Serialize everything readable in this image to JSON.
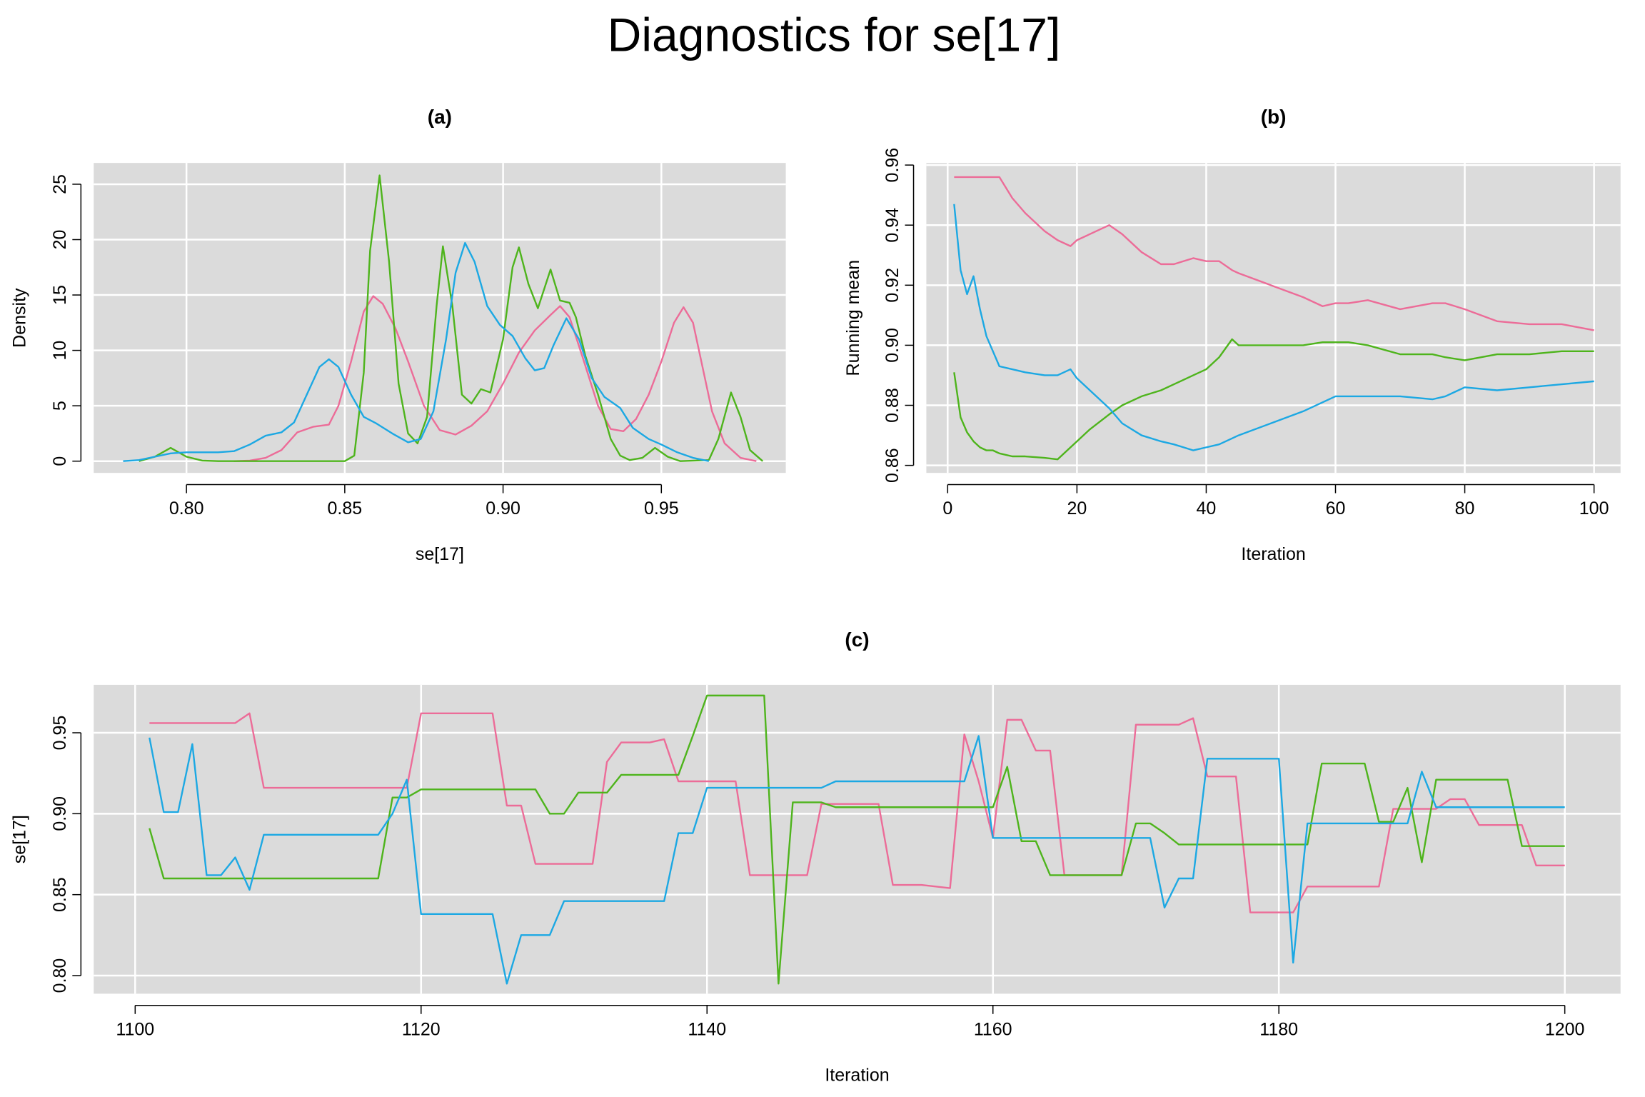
{
  "title": "Diagnostics for se[17]",
  "chart_data": [
    {
      "type": "line",
      "title": "(a)",
      "xlabel": "se[17]",
      "ylabel": "Density",
      "xlim": [
        0.7707,
        0.9893
      ],
      "ylim": [
        -1.06,
        26.92
      ],
      "xticks": [
        {
          "value": 0.8,
          "label": "0.80"
        },
        0.85,
        {
          "value": 0.9,
          "label": "0.90"
        },
        0.95
      ],
      "yticks": [
        0,
        5,
        10,
        15,
        20,
        25
      ],
      "grid": true,
      "series": [
        {
          "color": "#EC6C98",
          "x": [
            0.815,
            0.82,
            0.825,
            0.83,
            0.835,
            0.84,
            0.845,
            0.848,
            0.852,
            0.856,
            0.859,
            0.862,
            0.866,
            0.87,
            0.875,
            0.88,
            0.885,
            0.89,
            0.895,
            0.9,
            0.905,
            0.91,
            0.915,
            0.918,
            0.921,
            0.925,
            0.93,
            0.934,
            0.938,
            0.942,
            0.946,
            0.95,
            0.954,
            0.957,
            0.96,
            0.963,
            0.966,
            0.97,
            0.975,
            0.98
          ],
          "values": [
            0,
            0.05,
            0.3,
            1,
            2.6,
            3.1,
            3.3,
            5,
            9,
            13.5,
            14.9,
            14.2,
            12,
            9,
            5,
            2.8,
            2.4,
            3.2,
            4.5,
            7,
            9.8,
            11.8,
            13.2,
            14,
            13,
            9.5,
            5,
            2.9,
            2.7,
            3.8,
            6,
            9,
            12.5,
            13.9,
            12.5,
            8.5,
            4.5,
            1.6,
            0.3,
            0
          ]
        },
        {
          "color": "#4EB41C",
          "x": [
            0.785,
            0.79,
            0.795,
            0.8,
            0.805,
            0.81,
            0.85,
            0.853,
            0.856,
            0.858,
            0.861,
            0.864,
            0.867,
            0.87,
            0.873,
            0.876,
            0.879,
            0.881,
            0.884,
            0.887,
            0.89,
            0.893,
            0.896,
            0.9,
            0.903,
            0.905,
            0.908,
            0.911,
            0.915,
            0.918,
            0.921,
            0.923,
            0.926,
            0.93,
            0.934,
            0.937,
            0.94,
            0.944,
            0.948,
            0.952,
            0.956,
            0.965,
            0.968,
            0.972,
            0.975,
            0.978,
            0.982
          ],
          "values": [
            0,
            0.4,
            1.2,
            0.4,
            0.05,
            0,
            0,
            0.5,
            8,
            19,
            25.8,
            18,
            7,
            2.5,
            1.6,
            4,
            14,
            19.4,
            14,
            6,
            5.2,
            6.5,
            6.2,
            11,
            17.5,
            19.3,
            16,
            13.8,
            17.3,
            14.5,
            14.3,
            13,
            9.5,
            6,
            2,
            0.5,
            0.1,
            0.3,
            1.2,
            0.4,
            0,
            0.1,
            2,
            6.2,
            4,
            1,
            0
          ]
        },
        {
          "color": "#1CA8E3",
          "x": [
            0.78,
            0.785,
            0.79,
            0.795,
            0.8,
            0.81,
            0.815,
            0.82,
            0.825,
            0.83,
            0.834,
            0.838,
            0.842,
            0.845,
            0.848,
            0.852,
            0.856,
            0.86,
            0.865,
            0.87,
            0.874,
            0.878,
            0.882,
            0.885,
            0.888,
            0.891,
            0.895,
            0.899,
            0.903,
            0.907,
            0.91,
            0.913,
            0.916,
            0.92,
            0.924,
            0.928,
            0.932,
            0.937,
            0.941,
            0.946,
            0.95,
            0.955,
            0.96,
            0.965
          ],
          "values": [
            0,
            0.1,
            0.4,
            0.7,
            0.8,
            0.8,
            0.9,
            1.5,
            2.3,
            2.6,
            3.5,
            6,
            8.5,
            9.2,
            8.5,
            6,
            4,
            3.4,
            2.5,
            1.7,
            2,
            4.5,
            11,
            17,
            19.7,
            18,
            14,
            12.3,
            11.3,
            9.3,
            8.2,
            8.4,
            10.5,
            12.9,
            11,
            7.5,
            5.8,
            4.8,
            3,
            2,
            1.5,
            0.8,
            0.3,
            0
          ]
        }
      ]
    },
    {
      "type": "line",
      "title": "(b)",
      "xlabel": "Iteration",
      "ylabel": "Running mean",
      "xlim": [
        -3.3,
        104.1
      ],
      "ylim": [
        0.8575,
        0.9607
      ],
      "xticks": [
        0,
        20,
        40,
        60,
        80,
        100
      ],
      "yticks": [
        0.86,
        0.88,
        {
          "value": 0.9,
          "label": "0.90"
        },
        0.92,
        0.94,
        0.96
      ],
      "grid": true,
      "x": [
        1,
        2,
        3,
        4,
        5,
        6,
        7,
        8,
        10,
        12,
        15,
        17,
        19,
        20,
        22,
        25,
        27,
        30,
        33,
        35,
        38,
        40,
        42,
        44,
        45,
        50,
        55,
        58,
        60,
        62,
        65,
        70,
        75,
        77,
        80,
        85,
        90,
        95,
        100
      ],
      "series": [
        {
          "color": "#EC6C98",
          "values": [
            0.956,
            0.956,
            0.956,
            0.956,
            0.956,
            0.956,
            0.956,
            0.956,
            0.949,
            0.944,
            0.938,
            0.935,
            0.933,
            0.935,
            0.937,
            0.94,
            0.937,
            0.931,
            0.927,
            0.927,
            0.929,
            0.928,
            0.928,
            0.925,
            0.924,
            0.92,
            0.916,
            0.913,
            0.914,
            0.914,
            0.915,
            0.912,
            0.914,
            0.914,
            0.912,
            0.908,
            0.907,
            0.907,
            0.905
          ]
        },
        {
          "color": "#4EB41C",
          "values": [
            0.891,
            0.876,
            0.871,
            0.868,
            0.866,
            0.865,
            0.865,
            0.864,
            0.863,
            0.863,
            0.8625,
            0.862,
            0.866,
            0.868,
            0.872,
            0.877,
            0.88,
            0.883,
            0.885,
            0.887,
            0.89,
            0.892,
            0.896,
            0.902,
            0.9,
            0.9,
            0.9,
            0.901,
            0.901,
            0.901,
            0.9,
            0.897,
            0.897,
            0.896,
            0.895,
            0.897,
            0.897,
            0.898,
            0.898
          ]
        },
        {
          "color": "#1CA8E3",
          "values": [
            0.947,
            0.925,
            0.917,
            0.923,
            0.912,
            0.903,
            0.898,
            0.893,
            0.892,
            0.891,
            0.89,
            0.89,
            0.892,
            0.889,
            0.885,
            0.879,
            0.874,
            0.87,
            0.868,
            0.867,
            0.865,
            0.866,
            0.867,
            0.869,
            0.87,
            0.874,
            0.878,
            0.881,
            0.883,
            0.883,
            0.883,
            0.883,
            0.882,
            0.883,
            0.886,
            0.885,
            0.886,
            0.887,
            0.888
          ]
        }
      ]
    },
    {
      "type": "line",
      "title": "(c)",
      "xlabel": "Iteration",
      "ylabel": "se[17]",
      "xlim": [
        1097.1,
        1203.9
      ],
      "ylim": [
        0.7888,
        0.9796
      ],
      "xticks": [
        1100,
        1120,
        1140,
        1160,
        1180,
        1200
      ],
      "yticks": [
        {
          "value": 0.8,
          "label": "0.80"
        },
        0.85,
        {
          "value": 0.9,
          "label": "0.90"
        },
        0.95
      ],
      "grid": true,
      "x": [
        1101,
        1102,
        1103,
        1104,
        1105,
        1106,
        1107,
        1108,
        1109,
        1110,
        1111,
        1112,
        1113,
        1114,
        1115,
        1116,
        1117,
        1118,
        1119,
        1120,
        1121,
        1122,
        1123,
        1124,
        1125,
        1126,
        1127,
        1128,
        1129,
        1130,
        1131,
        1132,
        1133,
        1134,
        1135,
        1136,
        1137,
        1138,
        1139,
        1140,
        1141,
        1142,
        1143,
        1144,
        1145,
        1146,
        1147,
        1148,
        1149,
        1150,
        1151,
        1152,
        1153,
        1154,
        1155,
        1156,
        1157,
        1158,
        1159,
        1160,
        1161,
        1162,
        1163,
        1164,
        1165,
        1166,
        1167,
        1168,
        1169,
        1170,
        1171,
        1172,
        1173,
        1174,
        1175,
        1176,
        1177,
        1178,
        1179,
        1180,
        1181,
        1182,
        1183,
        1184,
        1185,
        1186,
        1187,
        1188,
        1189,
        1190,
        1191,
        1192,
        1193,
        1194,
        1195,
        1196,
        1197,
        1198,
        1199,
        1200
      ],
      "series": [
        {
          "color": "#EC6C98",
          "values": [
            0.956,
            0.956,
            0.956,
            0.956,
            0.956,
            0.956,
            0.956,
            0.962,
            0.916,
            0.916,
            0.916,
            0.916,
            0.916,
            0.916,
            0.916,
            0.916,
            0.916,
            0.916,
            0.916,
            0.962,
            0.962,
            0.962,
            0.962,
            0.962,
            0.962,
            0.905,
            0.905,
            0.869,
            0.869,
            0.869,
            0.869,
            0.869,
            0.932,
            0.944,
            0.944,
            0.944,
            0.946,
            0.92,
            0.92,
            0.92,
            0.92,
            0.92,
            0.862,
            0.862,
            0.862,
            0.862,
            0.862,
            0.906,
            0.906,
            0.906,
            0.906,
            0.906,
            0.856,
            0.856,
            0.856,
            0.855,
            0.854,
            0.949,
            0.92,
            0.885,
            0.958,
            0.958,
            0.939,
            0.939,
            0.862,
            0.862,
            0.862,
            0.862,
            0.862,
            0.955,
            0.955,
            0.955,
            0.955,
            0.959,
            0.923,
            0.923,
            0.923,
            0.839,
            0.839,
            0.839,
            0.839,
            0.855,
            0.855,
            0.855,
            0.855,
            0.855,
            0.855,
            0.903,
            0.903,
            0.903,
            0.903,
            0.909,
            0.909,
            0.893,
            0.893,
            0.893,
            0.893,
            0.868,
            0.868,
            0.868
          ]
        },
        {
          "color": "#4EB41C",
          "values": [
            0.891,
            0.86,
            0.86,
            0.86,
            0.86,
            0.86,
            0.86,
            0.86,
            0.86,
            0.86,
            0.86,
            0.86,
            0.86,
            0.86,
            0.86,
            0.86,
            0.86,
            0.91,
            0.91,
            0.915,
            0.915,
            0.915,
            0.915,
            0.915,
            0.915,
            0.915,
            0.915,
            0.915,
            0.9,
            0.9,
            0.913,
            0.913,
            0.913,
            0.924,
            0.924,
            0.924,
            0.924,
            0.924,
            0.948,
            0.973,
            0.973,
            0.973,
            0.973,
            0.973,
            0.795,
            0.907,
            0.907,
            0.907,
            0.904,
            0.904,
            0.904,
            0.904,
            0.904,
            0.904,
            0.904,
            0.904,
            0.904,
            0.904,
            0.904,
            0.904,
            0.929,
            0.883,
            0.883,
            0.862,
            0.862,
            0.862,
            0.862,
            0.862,
            0.862,
            0.894,
            0.894,
            0.888,
            0.881,
            0.881,
            0.881,
            0.881,
            0.881,
            0.881,
            0.881,
            0.881,
            0.881,
            0.881,
            0.931,
            0.931,
            0.931,
            0.931,
            0.895,
            0.895,
            0.916,
            0.87,
            0.921,
            0.921,
            0.921,
            0.921,
            0.921,
            0.921,
            0.88,
            0.88,
            0.88,
            0.88
          ]
        },
        {
          "color": "#1CA8E3",
          "values": [
            0.947,
            0.901,
            0.901,
            0.943,
            0.862,
            0.862,
            0.873,
            0.853,
            0.887,
            0.887,
            0.887,
            0.887,
            0.887,
            0.887,
            0.887,
            0.887,
            0.887,
            0.9,
            0.921,
            0.838,
            0.838,
            0.838,
            0.838,
            0.838,
            0.838,
            0.795,
            0.825,
            0.825,
            0.825,
            0.846,
            0.846,
            0.846,
            0.846,
            0.846,
            0.846,
            0.846,
            0.846,
            0.888,
            0.888,
            0.916,
            0.916,
            0.916,
            0.916,
            0.916,
            0.916,
            0.916,
            0.916,
            0.916,
            0.92,
            0.92,
            0.92,
            0.92,
            0.92,
            0.92,
            0.92,
            0.92,
            0.92,
            0.92,
            0.948,
            0.885,
            0.885,
            0.885,
            0.885,
            0.885,
            0.885,
            0.885,
            0.885,
            0.885,
            0.885,
            0.885,
            0.885,
            0.842,
            0.86,
            0.86,
            0.934,
            0.934,
            0.934,
            0.934,
            0.934,
            0.934,
            0.808,
            0.894,
            0.894,
            0.894,
            0.894,
            0.894,
            0.894,
            0.894,
            0.894,
            0.926,
            0.904,
            0.904,
            0.904,
            0.904,
            0.904,
            0.904,
            0.904,
            0.904,
            0.904,
            0.904
          ]
        }
      ]
    }
  ]
}
